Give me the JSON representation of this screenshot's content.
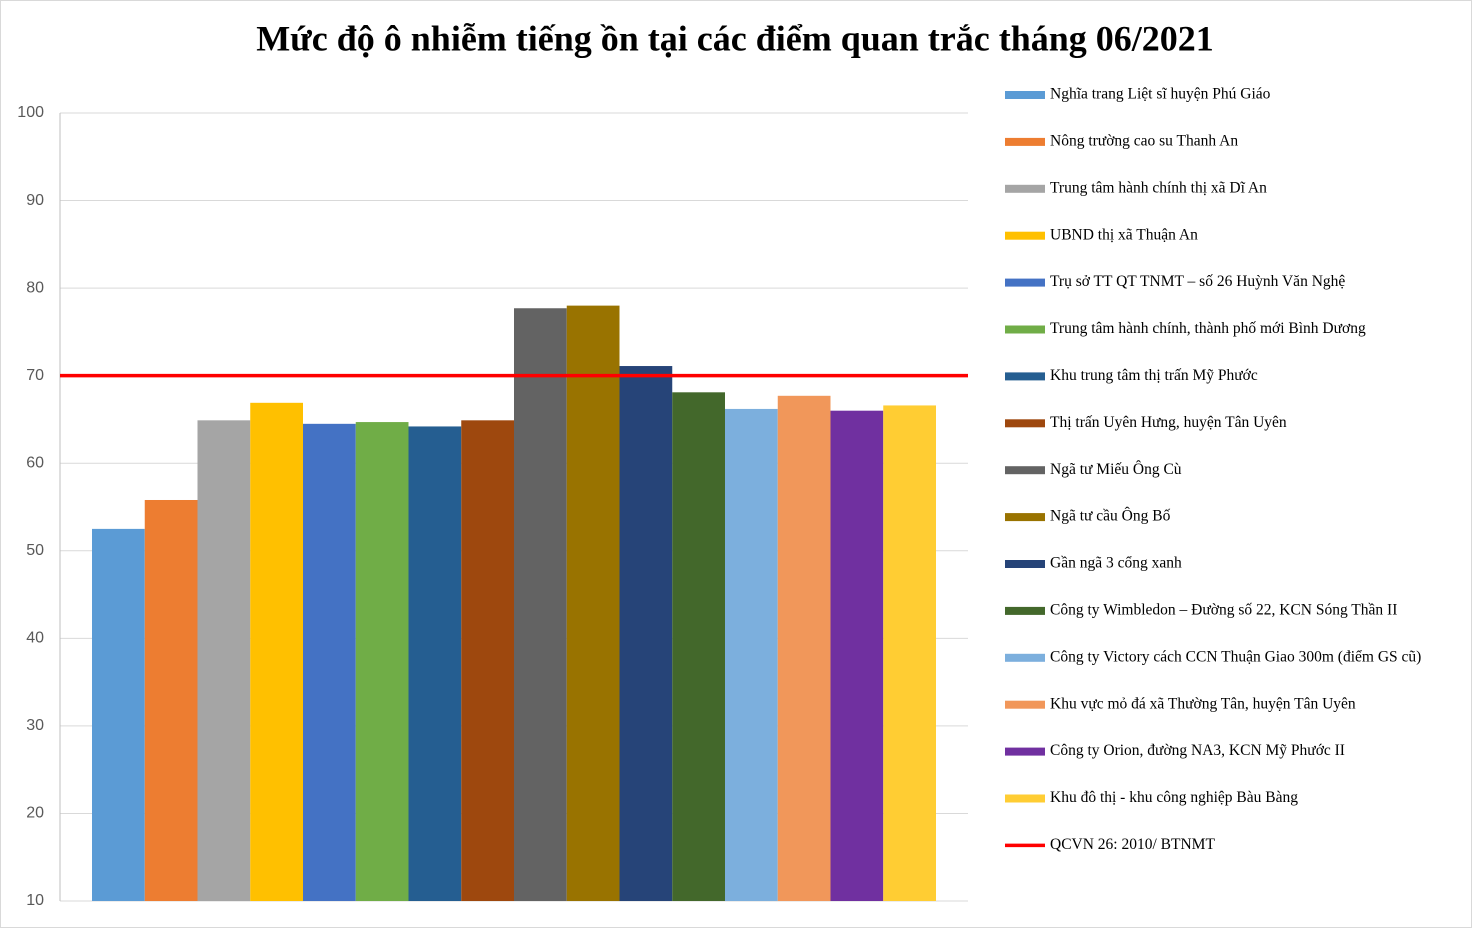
{
  "chart_data": {
    "type": "bar",
    "title": "Mức độ ô nhiễm tiếng ồn tại các điểm quan trắc tháng 06/2021",
    "ylim": [
      10,
      100
    ],
    "yticks": [
      10,
      20,
      30,
      40,
      50,
      60,
      70,
      80,
      90,
      100
    ],
    "grid": true,
    "series": [
      {
        "name": "Nghĩa trang Liệt sĩ huyện Phú Giáo",
        "color": "#5b9bd5",
        "values": [
          52.5
        ]
      },
      {
        "name": "Nông trường cao su Thanh  An",
        "color": "#ed7d31",
        "values": [
          55.8
        ]
      },
      {
        "name": "Trung  tâm hành  chính thị xã Dĩ An",
        "color": "#a5a5a5",
        "values": [
          64.9
        ]
      },
      {
        "name": "UBND thị xã Thuận  An",
        "color": "#ffc000",
        "values": [
          66.9
        ]
      },
      {
        "name": "Trụ sở TT  QT  TNMT  – số 26 Huỳnh  Văn Nghệ",
        "color": "#4472c4",
        "values": [
          64.5
        ]
      },
      {
        "name": "Trung  tâm hành  chính, thành phố mới Bình Dương",
        "color": "#70ad47",
        "values": [
          64.7
        ]
      },
      {
        "name": "Khu trung tâm thị trấn Mỹ Phước",
        "color": "#255e91",
        "values": [
          64.2
        ]
      },
      {
        "name": "Thị trấn Uyên Hưng, huyện Tân Uyên",
        "color": "#9e480e",
        "values": [
          64.9
        ]
      },
      {
        "name": "Ngã tư Miếu Ông Cù",
        "color": "#636363",
        "values": [
          77.7
        ]
      },
      {
        "name": "Ngã tư cầu Ông Bố",
        "color": "#997300",
        "values": [
          78.0
        ]
      },
      {
        "name": "Gần ngã 3 cổng xanh",
        "color": "#264478",
        "values": [
          71.1
        ]
      },
      {
        "name": "Công ty Wimbledon – Đường số 22,  KCN Sóng Thần  II",
        "color": "#43682b",
        "values": [
          68.1
        ]
      },
      {
        "name": "Công ty Victory cách CCN Thuận  Giao 300m (điểm GS cũ)",
        "color": "#7cafdd",
        "values": [
          66.2
        ]
      },
      {
        "name": "Khu vực mỏ đá xã Thường Tân,  huyện Tân Uyên",
        "color": "#f1975a",
        "values": [
          67.7
        ]
      },
      {
        "name": "Công ty Orion, đường NA3, KCN Mỹ Phước II",
        "color": "#7030a0",
        "values": [
          66.0
        ]
      },
      {
        "name": "Khu đô thị - khu công nghiệp Bàu Bàng",
        "color": "#ffcd33",
        "values": [
          66.6
        ]
      }
    ],
    "reference": {
      "name": "QCVN 26: 2010/ BTNMT",
      "value": 70,
      "color": "#ff0000"
    }
  }
}
